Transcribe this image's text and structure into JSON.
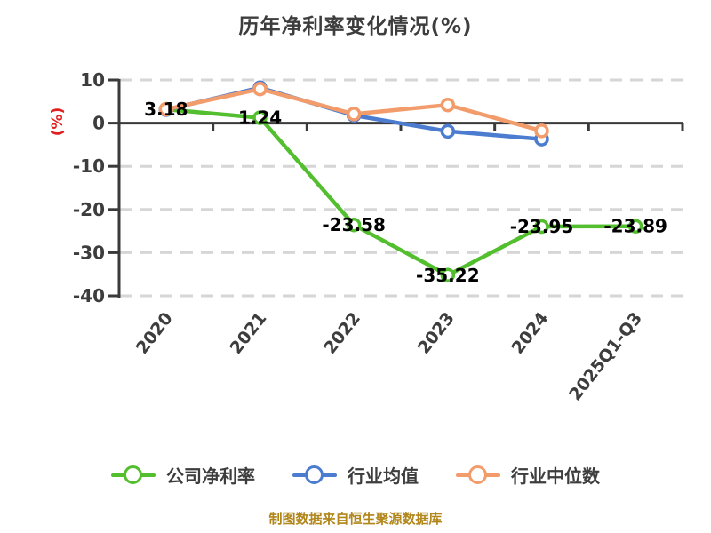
{
  "title": "历年净利率变化情况(%)",
  "footer": "制图数据来自恒生聚源数据库",
  "colors": {
    "company": "#53bf2e",
    "industry_avg": "#4b7ccf",
    "industry_median": "#f39c6b",
    "ylabel_red": "#e02020",
    "footer_gold": "#b1861a",
    "axis_dark": "#3a3a3a",
    "tick_text": "#3d3d3d",
    "grid_dash": "#d6d6d6",
    "data_label": "#000000"
  },
  "chart_data": {
    "type": "line",
    "title": "历年净利率变化情况(%)",
    "xlabel": "",
    "ylabel": "(%)",
    "categories": [
      "2020",
      "2021",
      "2022",
      "2023",
      "2024",
      "2025Q1-Q3"
    ],
    "yticks": [
      10,
      0,
      -10,
      -20,
      -30,
      -40
    ],
    "ylim": [
      -40,
      10
    ],
    "grid": "horizontal dashed, zero axis solid",
    "legend_position": "bottom",
    "series": [
      {
        "name": "公司净利率",
        "color": "#53bf2e",
        "values": [
          3.18,
          1.24,
          -23.58,
          -35.22,
          -23.95,
          -23.89
        ],
        "labeled": true
      },
      {
        "name": "行业均值",
        "color": "#4b7ccf",
        "values": [
          3.1,
          8.2,
          1.8,
          -1.9,
          -3.7,
          null
        ],
        "labeled": false
      },
      {
        "name": "行业中位数",
        "color": "#f39c6b",
        "values": [
          3.2,
          7.9,
          2.1,
          4.2,
          -1.8,
          null
        ],
        "labeled": false
      }
    ]
  }
}
